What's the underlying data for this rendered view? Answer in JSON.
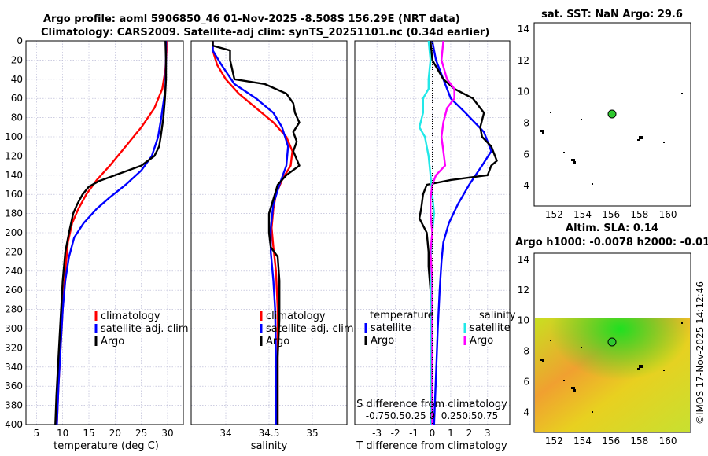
{
  "titles": {
    "line1": "Argo profile: aoml 5906850_46 01-Nov-2025 -8.508S 156.29E (NRT data)",
    "line2": "Climatology: CARS2009. Satellite-adj clim: synTS_20251101.nc (0.34d earlier)",
    "map1": "sat. SST: NaN Argo: 29.6",
    "map2a": "Altim. SLA: 0.14",
    "map2b": "Argo h1000: -0.0078 h2000: -0.01"
  },
  "watermark": "©IMOS 17-Nov-2025 14:12:46",
  "colors": {
    "climatology": "#ff0000",
    "satellite": "#0000ff",
    "argo": "#000000",
    "sat_s": "#22e8e8",
    "argo_s": "#ff00ff",
    "grid": "#b0b0d0"
  },
  "legend1": {
    "items": [
      "climatology",
      "satellite-adj. clim",
      "Argo"
    ]
  },
  "legend2": {
    "items": [
      "climatology",
      "satellite-adj. clim",
      "Argo"
    ]
  },
  "legend3": {
    "temperature_head": "temperature",
    "salinity_head": "salinity",
    "t_items": [
      "satellite",
      "Argo"
    ],
    "s_items": [
      "satellite",
      "Argo"
    ],
    "s_axis_label": "S difference from climatology",
    "s_axis_ticks": "-0.750.50.25 0  0.250.50.75"
  },
  "chart_data": [
    {
      "type": "line",
      "xlabel": "temperature (deg C)",
      "ylabel": "",
      "xlim": [
        3,
        33
      ],
      "ylim": [
        0,
        400
      ],
      "xticks": [
        5,
        10,
        15,
        20,
        25,
        30
      ],
      "yticks": [
        0,
        20,
        40,
        60,
        80,
        100,
        120,
        140,
        160,
        180,
        200,
        220,
        240,
        260,
        280,
        300,
        320,
        340,
        360,
        380,
        400
      ],
      "series": [
        {
          "name": "climatology",
          "points": [
            [
              29.8,
              0
            ],
            [
              29.8,
              10
            ],
            [
              29.6,
              30
            ],
            [
              29,
              50
            ],
            [
              27.5,
              70
            ],
            [
              25,
              90
            ],
            [
              22,
              110
            ],
            [
              19,
              130
            ],
            [
              16.5,
              145
            ],
            [
              14.5,
              160
            ],
            [
              13,
              175
            ],
            [
              11.8,
              190
            ],
            [
              11,
              210
            ],
            [
              10.5,
              240
            ],
            [
              10,
              280
            ],
            [
              9.6,
              320
            ],
            [
              9.2,
              360
            ],
            [
              8.9,
              400
            ]
          ]
        },
        {
          "name": "satellite-adj. clim",
          "points": [
            [
              29.7,
              0
            ],
            [
              29.7,
              20
            ],
            [
              29.6,
              50
            ],
            [
              28.8,
              80
            ],
            [
              28.2,
              100
            ],
            [
              27,
              120
            ],
            [
              25,
              135
            ],
            [
              22,
              150
            ],
            [
              19,
              163
            ],
            [
              16.5,
              175
            ],
            [
              14,
              190
            ],
            [
              12.2,
              205
            ],
            [
              11.2,
              225
            ],
            [
              10.5,
              250
            ],
            [
              10,
              280
            ],
            [
              9.6,
              320
            ],
            [
              9.2,
              360
            ],
            [
              8.9,
              400
            ]
          ]
        },
        {
          "name": "Argo",
          "points": [
            [
              29.6,
              0
            ],
            [
              29.7,
              20
            ],
            [
              29.7,
              40
            ],
            [
              29.5,
              60
            ],
            [
              29.2,
              80
            ],
            [
              28.7,
              100
            ],
            [
              28.4,
              110
            ],
            [
              27.5,
              120
            ],
            [
              25,
              130
            ],
            [
              21,
              138
            ],
            [
              17,
              146
            ],
            [
              15,
              152
            ],
            [
              13.8,
              160
            ],
            [
              12.8,
              170
            ],
            [
              12,
              180
            ],
            [
              11.2,
              200
            ],
            [
              10.5,
              220
            ],
            [
              10,
              250
            ],
            [
              9.6,
              290
            ],
            [
              9.2,
              330
            ],
            [
              8.8,
              370
            ],
            [
              8.6,
              400
            ]
          ]
        }
      ]
    },
    {
      "type": "line",
      "xlabel": "salinity",
      "ylabel": "",
      "xlim": [
        33.6,
        35.4
      ],
      "ylim": [
        0,
        400
      ],
      "xticks": [
        34,
        34.5,
        35
      ],
      "series": [
        {
          "name": "climatology",
          "points": [
            [
              33.85,
              0
            ],
            [
              33.85,
              10
            ],
            [
              33.9,
              25
            ],
            [
              34.0,
              40
            ],
            [
              34.15,
              55
            ],
            [
              34.35,
              70
            ],
            [
              34.55,
              85
            ],
            [
              34.7,
              100
            ],
            [
              34.77,
              115
            ],
            [
              34.75,
              130
            ],
            [
              34.65,
              145
            ],
            [
              34.58,
              160
            ],
            [
              34.55,
              175
            ],
            [
              34.53,
              195
            ],
            [
              34.55,
              215
            ],
            [
              34.58,
              240
            ],
            [
              34.6,
              280
            ],
            [
              34.6,
              330
            ],
            [
              34.6,
              400
            ]
          ]
        },
        {
          "name": "satellite-adj. clim",
          "points": [
            [
              33.85,
              0
            ],
            [
              33.85,
              10
            ],
            [
              33.95,
              25
            ],
            [
              34.1,
              45
            ],
            [
              34.35,
              60
            ],
            [
              34.55,
              75
            ],
            [
              34.65,
              90
            ],
            [
              34.72,
              110
            ],
            [
              34.7,
              130
            ],
            [
              34.62,
              150
            ],
            [
              34.55,
              170
            ],
            [
              34.52,
              195
            ],
            [
              34.52,
              220
            ],
            [
              34.55,
              250
            ],
            [
              34.57,
              280
            ],
            [
              34.58,
              330
            ],
            [
              34.58,
              400
            ]
          ]
        },
        {
          "name": "Argo",
          "points": [
            [
              33.85,
              0
            ],
            [
              33.85,
              5
            ],
            [
              34.05,
              10
            ],
            [
              34.05,
              20
            ],
            [
              34.1,
              40
            ],
            [
              34.45,
              45
            ],
            [
              34.7,
              55
            ],
            [
              34.78,
              65
            ],
            [
              34.8,
              75
            ],
            [
              34.85,
              85
            ],
            [
              34.78,
              95
            ],
            [
              34.82,
              105
            ],
            [
              34.78,
              115
            ],
            [
              34.85,
              130
            ],
            [
              34.7,
              140
            ],
            [
              34.6,
              150
            ],
            [
              34.55,
              165
            ],
            [
              34.5,
              180
            ],
            [
              34.5,
              200
            ],
            [
              34.52,
              215
            ],
            [
              34.6,
              225
            ],
            [
              34.62,
              250
            ],
            [
              34.62,
              290
            ],
            [
              34.6,
              330
            ],
            [
              34.6,
              400
            ]
          ]
        }
      ]
    },
    {
      "type": "line",
      "xlabel": "T difference from climatology",
      "ylabel": "",
      "xlim": [
        -4.2,
        4.2
      ],
      "ylim": [
        0,
        400
      ],
      "xticks": [
        -3,
        -2,
        -1,
        0,
        1,
        2,
        3
      ],
      "series": [
        {
          "name": "temperature satellite",
          "points": [
            [
              0,
              0
            ],
            [
              0.2,
              20
            ],
            [
              0.6,
              40
            ],
            [
              1.0,
              60
            ],
            [
              1.8,
              75
            ],
            [
              2.8,
              95
            ],
            [
              3.2,
              115
            ],
            [
              2.7,
              130
            ],
            [
              2.0,
              150
            ],
            [
              1.4,
              170
            ],
            [
              0.9,
              190
            ],
            [
              0.6,
              210
            ],
            [
              0.5,
              230
            ],
            [
              0.4,
              260
            ],
            [
              0.3,
              300
            ],
            [
              0.2,
              350
            ],
            [
              0.1,
              400
            ]
          ]
        },
        {
          "name": "temperature Argo",
          "points": [
            [
              -0.1,
              0
            ],
            [
              0,
              20
            ],
            [
              0.6,
              40
            ],
            [
              1.2,
              50
            ],
            [
              2.2,
              60
            ],
            [
              2.8,
              75
            ],
            [
              2.6,
              90
            ],
            [
              2.7,
              100
            ],
            [
              3.2,
              110
            ],
            [
              3.5,
              125
            ],
            [
              3.2,
              130
            ],
            [
              3.0,
              140
            ],
            [
              1.0,
              145
            ],
            [
              -0.3,
              150
            ],
            [
              -0.5,
              160
            ],
            [
              -0.6,
              175
            ],
            [
              -0.7,
              185
            ],
            [
              -0.3,
              200
            ],
            [
              -0.2,
              220
            ],
            [
              -0.2,
              235
            ],
            [
              -0.1,
              260
            ],
            [
              -0.05,
              300
            ],
            [
              -0.1,
              350
            ],
            [
              -0.1,
              400
            ]
          ]
        },
        {
          "name": "salinity satellite",
          "points": [
            [
              -0.2,
              0
            ],
            [
              -0.1,
              20
            ],
            [
              -0.2,
              40
            ],
            [
              -0.2,
              50
            ],
            [
              -0.5,
              60
            ],
            [
              -0.5,
              75
            ],
            [
              -0.7,
              90
            ],
            [
              -0.4,
              100
            ],
            [
              -0.2,
              120
            ],
            [
              -0.1,
              140
            ],
            [
              0,
              160
            ],
            [
              0.1,
              180
            ],
            [
              0.0,
              200
            ],
            [
              -0.1,
              230
            ],
            [
              -0.05,
              270
            ],
            [
              -0.1,
              320
            ],
            [
              -0.1,
              400
            ]
          ]
        },
        {
          "name": "salinity Argo",
          "points": [
            [
              0.6,
              0
            ],
            [
              0.5,
              20
            ],
            [
              0.8,
              40
            ],
            [
              1.2,
              50
            ],
            [
              1.2,
              60
            ],
            [
              0.8,
              70
            ],
            [
              0.6,
              85
            ],
            [
              0.5,
              100
            ],
            [
              0.6,
              115
            ],
            [
              0.7,
              130
            ],
            [
              0.2,
              140
            ],
            [
              0.0,
              150
            ],
            [
              -0.1,
              165
            ],
            [
              -0.1,
              180
            ],
            [
              0.0,
              200
            ],
            [
              -0.1,
              220
            ],
            [
              0.0,
              250
            ],
            [
              0.0,
              300
            ],
            [
              0.0,
              400
            ]
          ]
        }
      ]
    }
  ],
  "map1": {
    "xticks": [
      152,
      154,
      156,
      158,
      160
    ],
    "yticks": [
      4,
      6,
      8,
      10,
      12,
      14
    ],
    "argo_lon": 156.29,
    "argo_lat": 8.508
  },
  "map2": {
    "xticks": [
      152,
      154,
      156,
      158,
      160
    ],
    "yticks": [
      4,
      6,
      8,
      10,
      12,
      14
    ],
    "argo_lon": 156.29,
    "argo_lat": 8.508
  }
}
